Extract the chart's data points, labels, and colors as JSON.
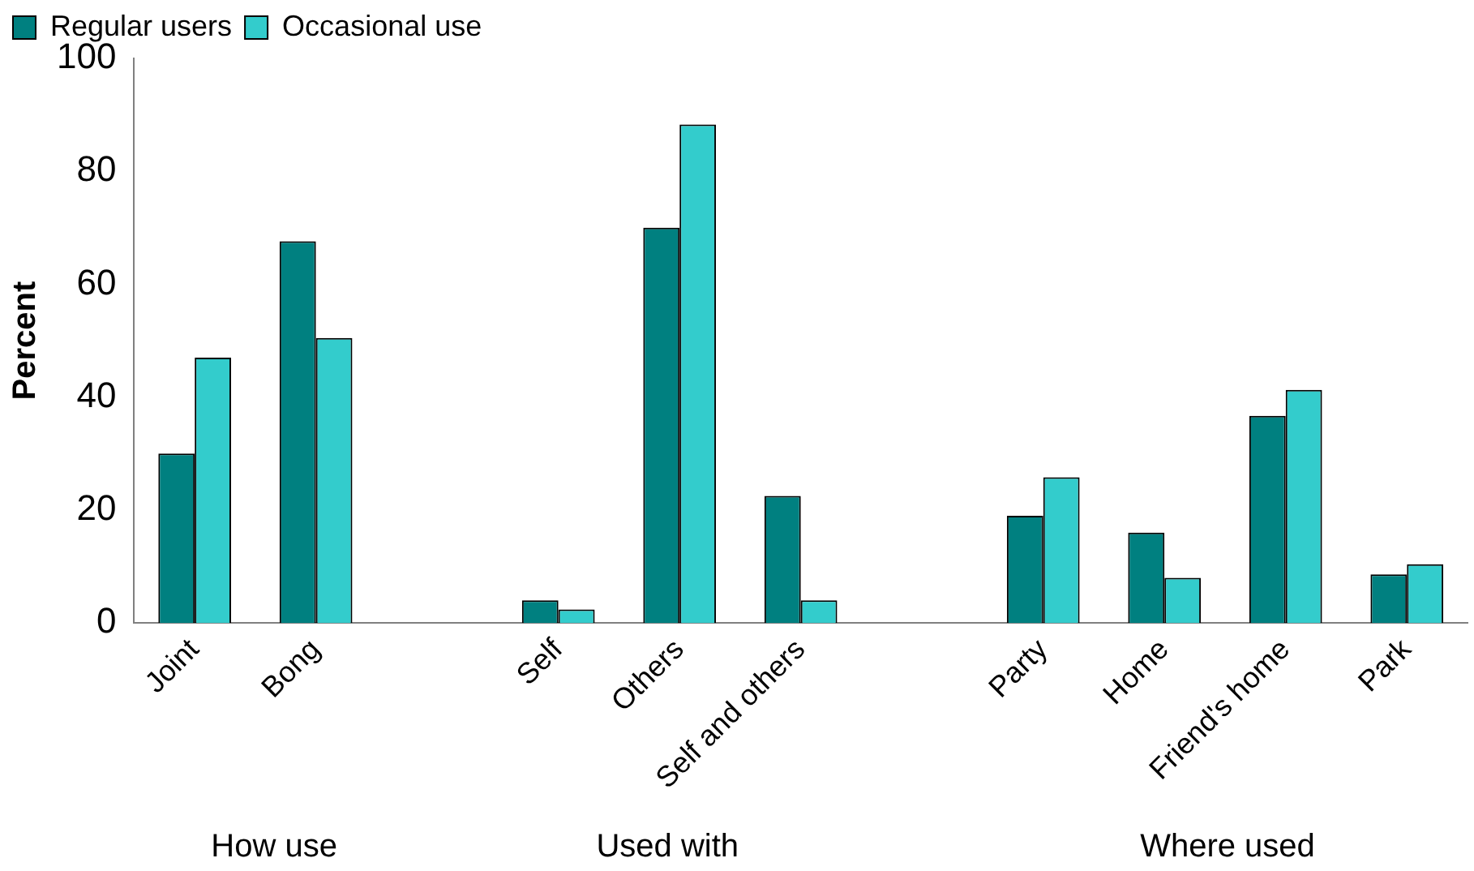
{
  "chart_data": {
    "type": "bar",
    "ylabel": "Percent",
    "categories": [
      "Joint",
      "Bong",
      null,
      "Self",
      "Others",
      "Self and others",
      null,
      "Party",
      "Home",
      "Friend's home",
      "Park"
    ],
    "series": [
      {
        "name": "Regular users",
        "color": "#008080",
        "values": [
          30,
          67.6,
          null,
          4,
          70,
          22.5,
          null,
          19,
          16,
          36.7,
          8.6
        ]
      },
      {
        "name": "Occasional use",
        "color": "#33cccc",
        "values": [
          47,
          50.5,
          null,
          2.4,
          88.3,
          4,
          null,
          25.8,
          8,
          41.3,
          10.4
        ]
      }
    ],
    "ylim": [
      0,
      100
    ],
    "yticks": [
      0,
      20,
      40,
      60,
      80,
      100
    ],
    "grid": false,
    "legend": "top left",
    "annotations": [
      "How use",
      "Used with",
      "Where used"
    ]
  }
}
